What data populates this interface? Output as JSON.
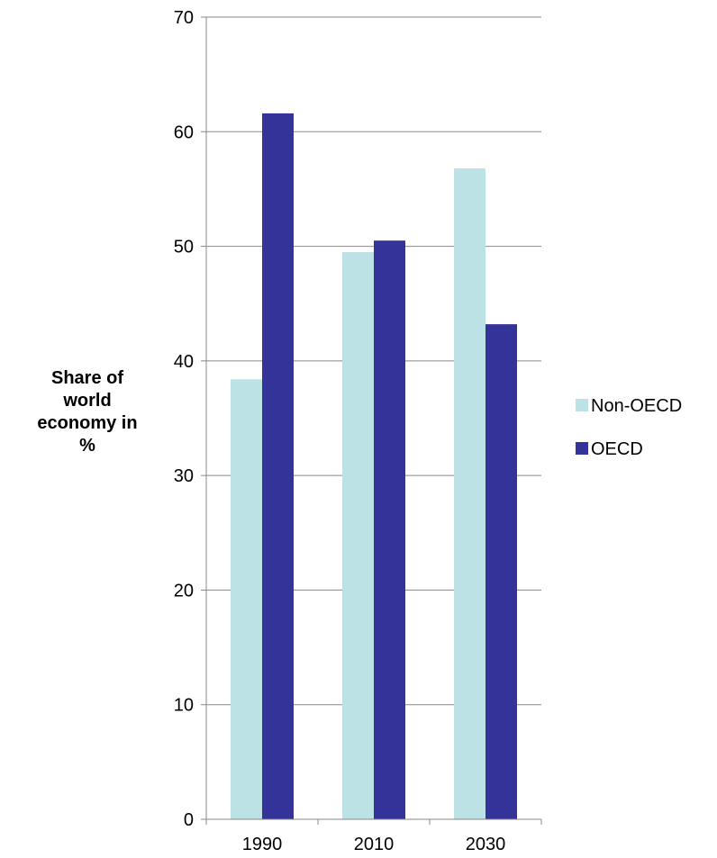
{
  "chart_data": {
    "type": "bar",
    "categories": [
      "1990",
      "2010",
      "2030"
    ],
    "series": [
      {
        "name": "Non-OECD",
        "values": [
          38.4,
          49.5,
          56.8
        ],
        "color": "#bde2e5"
      },
      {
        "name": "OECD",
        "values": [
          61.6,
          50.5,
          43.2
        ],
        "color": "#333399"
      }
    ],
    "ylabel_lines": [
      "Share of",
      "world",
      "economy in",
      "%"
    ],
    "ylim": [
      0,
      70
    ],
    "y_ticks": [
      0,
      10,
      20,
      30,
      40,
      50,
      60,
      70
    ],
    "grid": true,
    "legend_position": "right"
  }
}
